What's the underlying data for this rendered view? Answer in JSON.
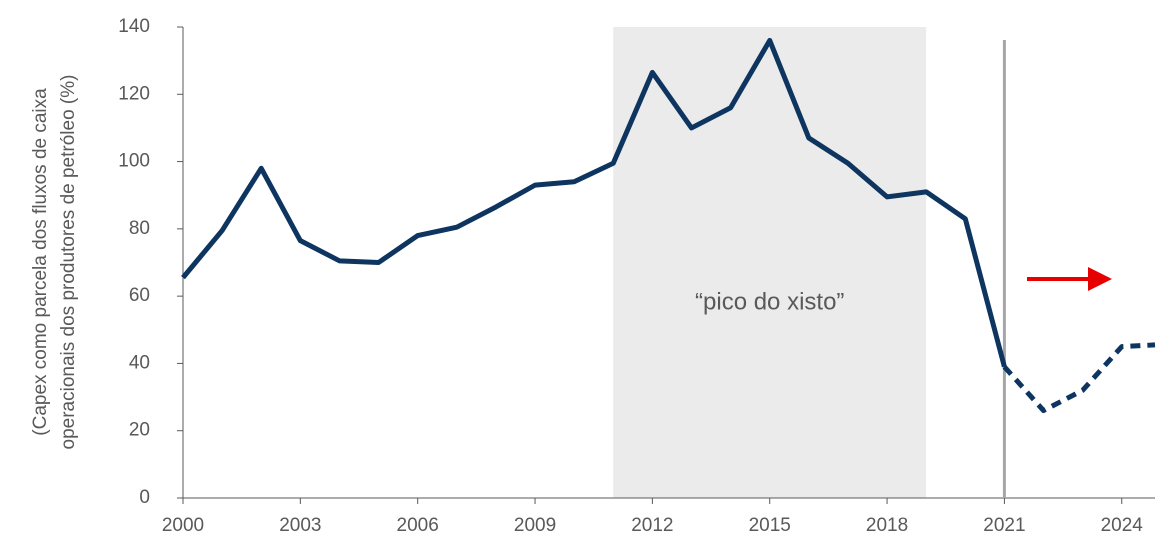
{
  "chart_data": {
    "type": "line",
    "y_label": [
      "(Capex como parcela dos fluxos de caixa",
      "operacionais dos produtores de petróleo (%)"
    ],
    "annotation": "“pico do xisto”",
    "shaded_span": [
      2011,
      2019
    ],
    "vline": 2021,
    "xlim": [
      2000,
      2024.85
    ],
    "xticks": [
      2000,
      2003,
      2006,
      2009,
      2012,
      2015,
      2018,
      2021,
      2024
    ],
    "ylim": [
      0,
      140
    ],
    "yticks": [
      0,
      20,
      40,
      60,
      80,
      100,
      120,
      140
    ],
    "series": [
      {
        "color": "#0d3560",
        "dash": false,
        "x": [
          2000,
          2001,
          2002,
          2003,
          2004,
          2005,
          2006,
          2007,
          2008,
          2009,
          2010,
          2011,
          2012,
          2013,
          2014,
          2015,
          2016,
          2017,
          2018,
          2019,
          2020,
          2021
        ],
        "values": [
          65.5,
          79.5,
          98,
          76.5,
          70.5,
          70,
          78,
          80.5,
          86.5,
          93,
          94,
          99.5,
          126.5,
          110,
          116,
          136,
          107,
          99.5,
          89.5,
          91,
          83,
          39
        ]
      },
      {
        "color": "#0d3560",
        "dash": true,
        "x": [
          2021,
          2022,
          2023,
          2024,
          2024.85
        ],
        "values": [
          39,
          26,
          32,
          45,
          45.5
        ]
      }
    ]
  }
}
